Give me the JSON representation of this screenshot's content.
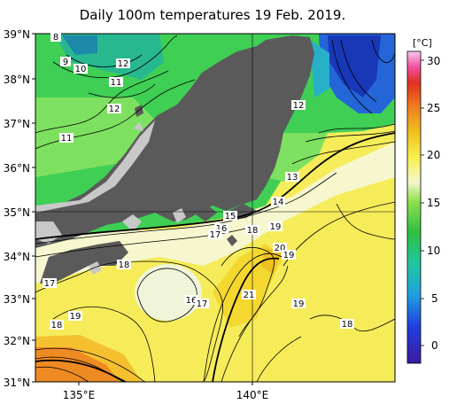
{
  "title": "Daily 100m temperatures 19 Feb. 2019.",
  "lat_labels": [
    "39°N",
    "38°N",
    "37°N",
    "36°N",
    "35°N",
    "34°N",
    "33°N",
    "32°N",
    "31°N"
  ],
  "lon_labels": [
    "135°E",
    "140°E"
  ],
  "colorbar": {
    "unit": "[°C]",
    "ticks": [
      "30",
      "25",
      "20",
      "15",
      "10",
      "5",
      "0"
    ],
    "range": [
      -2,
      31
    ]
  },
  "contour_labels": [
    "8",
    "9",
    "10",
    "12",
    "11",
    "12",
    "11",
    "12",
    "13",
    "14",
    "15",
    "16",
    "17",
    "18",
    "19",
    "20",
    "19",
    "17",
    "18",
    "16",
    "17",
    "21",
    "19",
    "18",
    "17",
    "19",
    "18"
  ],
  "colors": {
    "land": "#5a5a5a",
    "no_data": "#c8c8c8",
    "cold_sea": "#2050d0",
    "sea_green": "#33cc55",
    "sea_yellow": "#ffee55",
    "sea_orange": "#f08a1a"
  }
}
